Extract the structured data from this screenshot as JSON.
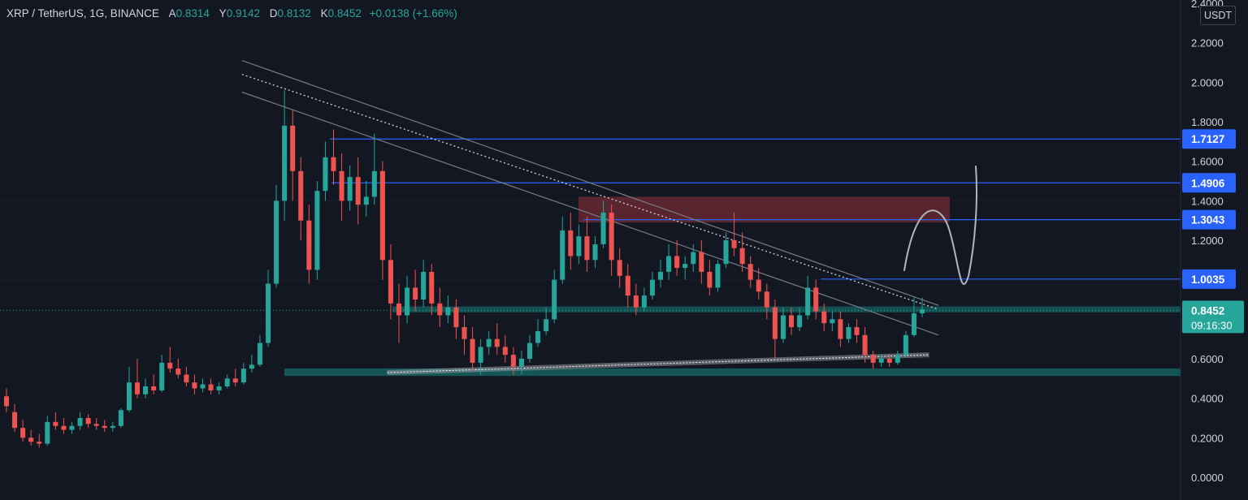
{
  "header": {
    "symbol": "XRP / TetherUS, 1G, BINANCE",
    "open_label": "A",
    "open": "0.8314",
    "high_label": "Y",
    "high": "0.9142",
    "low_label": "D",
    "low": "0.8132",
    "close_label": "K",
    "close": "0.8452",
    "change": "+0.0138 (+1.66%)"
  },
  "axis": {
    "unit": "USDT"
  },
  "colors": {
    "background": "#131722",
    "up": "#26a69a",
    "down": "#ef5350",
    "level_line": "#2962ff",
    "zone": "#145a5a",
    "supply": "#6b2a34"
  },
  "chart_data": {
    "type": "candlestick",
    "y_ticks": [
      "0.0000",
      "0.2000",
      "0.4000",
      "0.6000",
      "0.8000",
      "1.0000",
      "1.2000",
      "1.4000",
      "1.6000",
      "1.8000",
      "2.0000",
      "2.2000",
      "2.4000"
    ],
    "ylim": [
      0,
      2.4
    ],
    "candles": [
      [
        0.41,
        0.45,
        0.36,
        0.33
      ],
      [
        0.33,
        0.37,
        0.25,
        0.23
      ],
      [
        0.25,
        0.29,
        0.2,
        0.18
      ],
      [
        0.2,
        0.24,
        0.18,
        0.16
      ],
      [
        0.18,
        0.22,
        0.17,
        0.15
      ],
      [
        0.17,
        0.31,
        0.28,
        0.16
      ],
      [
        0.28,
        0.33,
        0.26,
        0.24
      ],
      [
        0.26,
        0.3,
        0.24,
        0.22
      ],
      [
        0.24,
        0.28,
        0.26,
        0.22
      ],
      [
        0.26,
        0.33,
        0.3,
        0.24
      ],
      [
        0.3,
        0.32,
        0.27,
        0.25
      ],
      [
        0.27,
        0.3,
        0.26,
        0.24
      ],
      [
        0.26,
        0.29,
        0.25,
        0.23
      ],
      [
        0.25,
        0.28,
        0.26,
        0.23
      ],
      [
        0.26,
        0.35,
        0.34,
        0.25
      ],
      [
        0.34,
        0.56,
        0.48,
        0.33
      ],
      [
        0.48,
        0.6,
        0.42,
        0.4
      ],
      [
        0.42,
        0.5,
        0.46,
        0.4
      ],
      [
        0.46,
        0.52,
        0.44,
        0.42
      ],
      [
        0.44,
        0.62,
        0.58,
        0.43
      ],
      [
        0.58,
        0.66,
        0.55,
        0.53
      ],
      [
        0.55,
        0.6,
        0.52,
        0.5
      ],
      [
        0.52,
        0.56,
        0.48,
        0.46
      ],
      [
        0.48,
        0.52,
        0.45,
        0.42
      ],
      [
        0.45,
        0.5,
        0.47,
        0.43
      ],
      [
        0.47,
        0.5,
        0.44,
        0.42
      ],
      [
        0.44,
        0.48,
        0.46,
        0.42
      ],
      [
        0.46,
        0.52,
        0.5,
        0.45
      ],
      [
        0.5,
        0.55,
        0.48,
        0.46
      ],
      [
        0.48,
        0.58,
        0.55,
        0.47
      ],
      [
        0.55,
        0.62,
        0.57,
        0.53
      ],
      [
        0.57,
        0.72,
        0.68,
        0.56
      ],
      [
        0.68,
        1.05,
        0.98,
        0.66
      ],
      [
        0.98,
        1.48,
        1.4,
        0.96
      ],
      [
        1.4,
        1.96,
        1.78,
        1.3
      ],
      [
        1.78,
        1.86,
        1.55,
        1.4
      ],
      [
        1.55,
        1.62,
        1.3,
        1.2
      ],
      [
        1.3,
        1.38,
        1.05,
        0.98
      ],
      [
        1.05,
        1.5,
        1.45,
        1.0
      ],
      [
        1.45,
        1.7,
        1.62,
        1.4
      ],
      [
        1.62,
        1.76,
        1.55,
        1.48
      ],
      [
        1.55,
        1.64,
        1.4,
        1.3
      ],
      [
        1.4,
        1.58,
        1.52,
        1.35
      ],
      [
        1.52,
        1.62,
        1.38,
        1.28
      ],
      [
        1.38,
        1.5,
        1.42,
        1.32
      ],
      [
        1.42,
        1.74,
        1.55,
        1.38
      ],
      [
        1.55,
        1.6,
        1.1,
        1.0
      ],
      [
        1.1,
        1.18,
        0.88,
        0.8
      ],
      [
        0.88,
        0.98,
        0.82,
        0.68
      ],
      [
        0.82,
        1.02,
        0.96,
        0.78
      ],
      [
        0.96,
        1.05,
        0.9,
        0.84
      ],
      [
        0.9,
        1.1,
        1.04,
        0.86
      ],
      [
        1.04,
        1.08,
        0.88,
        0.82
      ],
      [
        0.88,
        0.96,
        0.82,
        0.76
      ],
      [
        0.82,
        0.92,
        0.86,
        0.78
      ],
      [
        0.86,
        0.9,
        0.76,
        0.7
      ],
      [
        0.76,
        0.82,
        0.7,
        0.62
      ],
      [
        0.7,
        0.76,
        0.58,
        0.54
      ],
      [
        0.58,
        0.7,
        0.66,
        0.52
      ],
      [
        0.66,
        0.74,
        0.7,
        0.62
      ],
      [
        0.7,
        0.78,
        0.66,
        0.62
      ],
      [
        0.66,
        0.72,
        0.62,
        0.58
      ],
      [
        0.62,
        0.66,
        0.56,
        0.52
      ],
      [
        0.56,
        0.64,
        0.6,
        0.52
      ],
      [
        0.6,
        0.72,
        0.68,
        0.58
      ],
      [
        0.68,
        0.8,
        0.74,
        0.66
      ],
      [
        0.74,
        0.86,
        0.8,
        0.72
      ],
      [
        0.8,
        1.05,
        1.0,
        0.78
      ],
      [
        1.0,
        1.32,
        1.25,
        0.98
      ],
      [
        1.25,
        1.34,
        1.12,
        1.05
      ],
      [
        1.12,
        1.28,
        1.22,
        1.08
      ],
      [
        1.22,
        1.32,
        1.1,
        1.04
      ],
      [
        1.1,
        1.22,
        1.18,
        1.06
      ],
      [
        1.18,
        1.4,
        1.34,
        1.16
      ],
      [
        1.34,
        1.38,
        1.1,
        1.02
      ],
      [
        1.1,
        1.16,
        1.02,
        0.96
      ],
      [
        1.02,
        1.08,
        0.92,
        0.86
      ],
      [
        0.92,
        0.98,
        0.86,
        0.82
      ],
      [
        0.86,
        0.96,
        0.92,
        0.84
      ],
      [
        0.92,
        1.04,
        1.0,
        0.9
      ],
      [
        1.0,
        1.1,
        1.04,
        0.96
      ],
      [
        1.04,
        1.18,
        1.12,
        1.0
      ],
      [
        1.12,
        1.2,
        1.06,
        1.02
      ],
      [
        1.06,
        1.12,
        1.08,
        1.0
      ],
      [
        1.08,
        1.18,
        1.14,
        1.04
      ],
      [
        1.14,
        1.2,
        1.04,
        0.98
      ],
      [
        1.04,
        1.1,
        0.96,
        0.92
      ],
      [
        0.96,
        1.1,
        1.08,
        0.94
      ],
      [
        1.08,
        1.24,
        1.2,
        1.06
      ],
      [
        1.2,
        1.34,
        1.16,
        1.12
      ],
      [
        1.16,
        1.24,
        1.08,
        1.04
      ],
      [
        1.08,
        1.12,
        1.0,
        0.96
      ],
      [
        1.0,
        1.06,
        0.94,
        0.9
      ],
      [
        0.94,
        0.98,
        0.86,
        0.8
      ],
      [
        0.86,
        0.9,
        0.7,
        0.6
      ],
      [
        0.7,
        0.86,
        0.82,
        0.68
      ],
      [
        0.82,
        0.86,
        0.76,
        0.72
      ],
      [
        0.76,
        0.86,
        0.82,
        0.74
      ],
      [
        0.82,
        1.02,
        0.96,
        0.8
      ],
      [
        0.96,
        1.0,
        0.84,
        0.8
      ],
      [
        0.84,
        0.88,
        0.78,
        0.74
      ],
      [
        0.78,
        0.84,
        0.8,
        0.74
      ],
      [
        0.8,
        0.84,
        0.7,
        0.66
      ],
      [
        0.7,
        0.78,
        0.76,
        0.68
      ],
      [
        0.76,
        0.8,
        0.72,
        0.68
      ],
      [
        0.72,
        0.76,
        0.62,
        0.58
      ],
      [
        0.62,
        0.64,
        0.58,
        0.55
      ],
      [
        0.58,
        0.62,
        0.6,
        0.56
      ],
      [
        0.6,
        0.62,
        0.58,
        0.56
      ],
      [
        0.58,
        0.64,
        0.62,
        0.57
      ],
      [
        0.62,
        0.74,
        0.72,
        0.61
      ],
      [
        0.72,
        0.91,
        0.83,
        0.71
      ],
      [
        0.83,
        0.91,
        0.85,
        0.81
      ]
    ],
    "levels": [
      {
        "value": 1.7127,
        "label": "1.7127"
      },
      {
        "value": 1.4906,
        "label": "1.4906"
      },
      {
        "value": 1.3043,
        "label": "1.3043"
      },
      {
        "value": 1.0035,
        "label": "1.0035"
      }
    ],
    "last_price": {
      "value": 0.8452,
      "label": "0.8452",
      "countdown": "09:16:30"
    },
    "zones": [
      {
        "kind": "demand",
        "from": 0.513,
        "to": 0.551
      },
      {
        "kind": "support",
        "from": 0.835,
        "to": 0.865
      },
      {
        "kind": "supply",
        "from": 1.29,
        "to": 1.42
      }
    ],
    "trendlines": [
      {
        "style": "solid",
        "x1": 0.205,
        "y1": 2.11,
        "x2": 0.795,
        "y2": 0.87
      },
      {
        "style": "dotted",
        "x1": 0.205,
        "y1": 2.04,
        "x2": 0.795,
        "y2": 0.85
      },
      {
        "style": "solid",
        "x1": 0.205,
        "y1": 1.95,
        "x2": 0.795,
        "y2": 0.72
      },
      {
        "style": "channel",
        "x1": 0.328,
        "y1": 0.53,
        "x2": 0.787,
        "y2": 0.62
      }
    ]
  }
}
